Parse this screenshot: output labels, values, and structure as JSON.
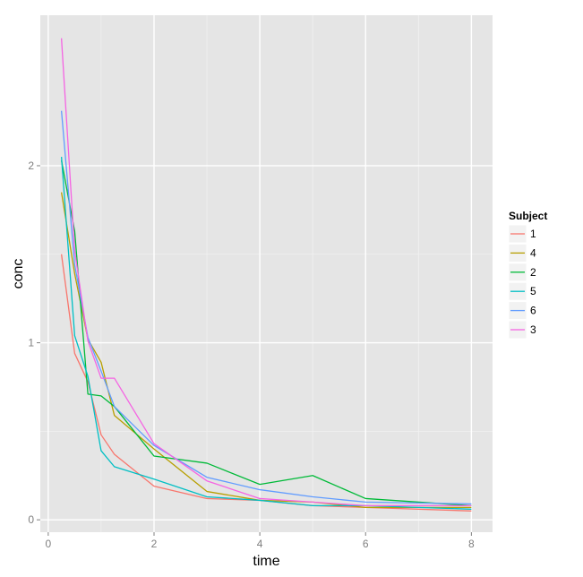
{
  "chart_data": {
    "type": "line",
    "xlabel": "time",
    "ylabel": "conc",
    "xlim": [
      -0.15,
      8.4
    ],
    "ylim": [
      -0.07,
      2.85
    ],
    "x_ticks": [
      0,
      2,
      4,
      6,
      8
    ],
    "y_ticks": [
      0,
      1,
      2
    ],
    "x_tick_labels": [
      "0",
      "2",
      "4",
      "6",
      "8"
    ],
    "y_tick_labels": [
      "0",
      "1",
      "2"
    ],
    "grid": true,
    "background": "#e5e5e5",
    "legend": {
      "title": "Subject",
      "position": "right"
    },
    "series": [
      {
        "name": "1",
        "color": "#f8766d",
        "x": [
          0.25,
          0.5,
          0.75,
          1,
          1.25,
          2,
          3,
          4,
          5,
          6,
          8
        ],
        "y": [
          1.5,
          0.94,
          0.78,
          0.48,
          0.37,
          0.19,
          0.12,
          0.11,
          0.08,
          0.07,
          0.05
        ]
      },
      {
        "name": "4",
        "color": "#b79f00",
        "x": [
          0.25,
          0.5,
          0.75,
          1,
          1.25,
          2,
          3,
          4,
          5,
          6,
          8
        ],
        "y": [
          1.85,
          1.39,
          1.02,
          0.89,
          0.59,
          0.4,
          0.16,
          0.11,
          0.1,
          0.07,
          0.07
        ]
      },
      {
        "name": "2",
        "color": "#00ba38",
        "x": [
          0.25,
          0.5,
          0.75,
          1,
          1.25,
          2,
          3,
          4,
          5,
          6,
          8
        ],
        "y": [
          2.03,
          1.63,
          0.71,
          0.7,
          0.64,
          0.36,
          0.32,
          0.2,
          0.25,
          0.12,
          0.08
        ]
      },
      {
        "name": "5",
        "color": "#00bfc4",
        "x": [
          0.25,
          0.5,
          0.75,
          1,
          1.25,
          2,
          3,
          4,
          5,
          6,
          8
        ],
        "y": [
          2.05,
          1.04,
          0.81,
          0.39,
          0.3,
          0.23,
          0.13,
          0.11,
          0.08,
          0.08,
          0.06
        ]
      },
      {
        "name": "6",
        "color": "#619cff",
        "x": [
          0.25,
          0.5,
          0.75,
          1,
          1.25,
          2,
          3,
          4,
          5,
          6,
          8
        ],
        "y": [
          2.31,
          1.44,
          1.03,
          0.84,
          0.64,
          0.42,
          0.24,
          0.17,
          0.13,
          0.1,
          0.09
        ]
      },
      {
        "name": "3",
        "color": "#f564e3",
        "x": [
          0.25,
          0.5,
          0.75,
          1,
          1.25,
          2,
          3,
          4,
          5,
          6,
          8
        ],
        "y": [
          2.72,
          1.52,
          1.01,
          0.8,
          0.8,
          0.43,
          0.22,
          0.12,
          0.1,
          0.08,
          0.08
        ]
      }
    ]
  }
}
